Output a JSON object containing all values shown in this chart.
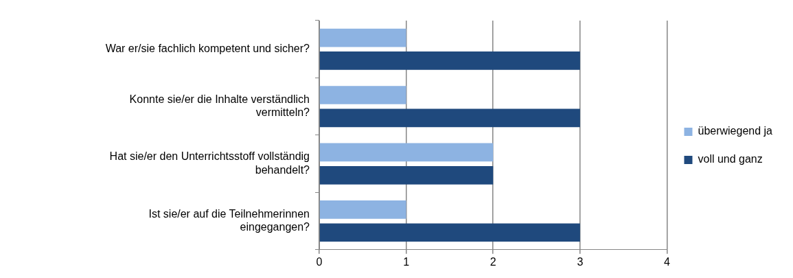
{
  "chart_data": {
    "type": "bar",
    "orientation": "horizontal",
    "categories": [
      "War er/sie fachlich kompetent und sicher?",
      "Konnte sie/er die Inhalte verständlich vermitteln?",
      "Hat sie/er den Unterrichtsstoff vollständig behandelt?",
      "Ist sie/er auf die Teilnehmerinnen eingegangen?"
    ],
    "series": [
      {
        "name": "überwiegend ja",
        "color": "#8db3e2",
        "values": [
          1,
          1,
          2,
          1
        ]
      },
      {
        "name": "voll und ganz",
        "color": "#1f497d",
        "values": [
          3,
          3,
          2,
          3
        ]
      }
    ],
    "xlim": [
      0,
      4
    ],
    "xticks": [
      0,
      1,
      2,
      3,
      4
    ],
    "grid": "x",
    "legend": "right"
  }
}
